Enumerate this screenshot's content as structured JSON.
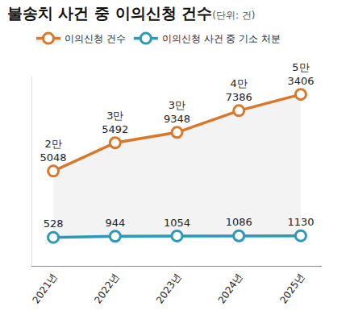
{
  "chart_data": {
    "type": "line",
    "title": "불송치 사건 중 이의신청 건수",
    "subtitle": "(단위: 건)",
    "categories": [
      "2021년",
      "2022년",
      "2023년",
      "2024년",
      "2025년"
    ],
    "series": [
      {
        "name": "이의신청 건수",
        "color": "#d9772b",
        "marker": "circle",
        "values": [
          25048,
          35492,
          39348,
          47386,
          53406
        ],
        "value_labels": [
          "2만\n5048",
          "3만\n5492",
          "3만\n9348",
          "4만\n7386",
          "5만\n3406"
        ]
      },
      {
        "name": "이의신청 사건 중 기소 처분",
        "color": "#2a9ab8",
        "marker": "circle",
        "values": [
          528,
          944,
          1054,
          1086,
          1130
        ]
      }
    ],
    "ylim": [
      -10000,
      60000
    ],
    "yticks": [],
    "tick_labels": "x",
    "data_labels": true,
    "grid": false,
    "legend": "top"
  }
}
